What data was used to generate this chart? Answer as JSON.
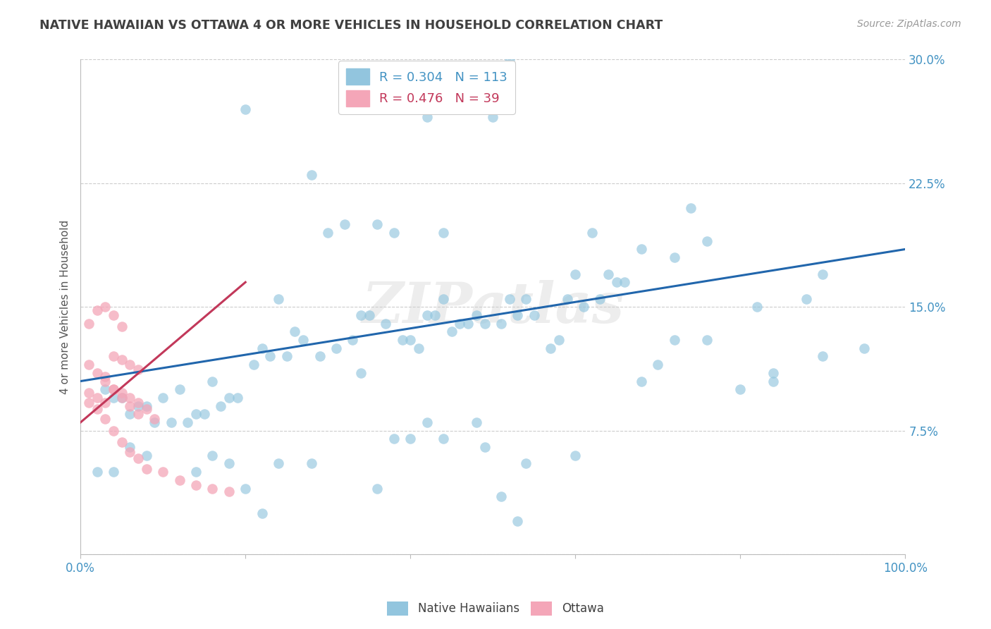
{
  "title": "NATIVE HAWAIIAN VS OTTAWA 4 OR MORE VEHICLES IN HOUSEHOLD CORRELATION CHART",
  "source": "Source: ZipAtlas.com",
  "ylabel": "4 or more Vehicles in Household",
  "watermark": "ZIPatlas",
  "xlim": [
    0.0,
    1.0
  ],
  "ylim": [
    0.0,
    0.3
  ],
  "ytick_positions": [
    0.0,
    0.075,
    0.15,
    0.225,
    0.3
  ],
  "yticklabels": [
    "",
    "7.5%",
    "15.0%",
    "22.5%",
    "30.0%"
  ],
  "color_blue": "#92c5de",
  "color_pink": "#f4a6b8",
  "color_line_blue": "#2166ac",
  "color_line_pink": "#c2385a",
  "color_ticks_blue": "#4393c3",
  "color_title": "#404040",
  "color_source": "#999999",
  "native_hawaiian_x": [
    0.42,
    0.52,
    0.2,
    0.5,
    0.28,
    0.36,
    0.44,
    0.3,
    0.32,
    0.38,
    0.04,
    0.06,
    0.08,
    0.1,
    0.12,
    0.14,
    0.16,
    0.18,
    0.22,
    0.24,
    0.26,
    0.34,
    0.4,
    0.46,
    0.48,
    0.54,
    0.58,
    0.6,
    0.62,
    0.64,
    0.66,
    0.68,
    0.72,
    0.74,
    0.76,
    0.8,
    0.82,
    0.84,
    0.88,
    0.9,
    0.95,
    0.03,
    0.05,
    0.07,
    0.09,
    0.11,
    0.13,
    0.15,
    0.17,
    0.19,
    0.21,
    0.23,
    0.25,
    0.27,
    0.29,
    0.31,
    0.33,
    0.35,
    0.37,
    0.39,
    0.41,
    0.43,
    0.45,
    0.47,
    0.49,
    0.51,
    0.53,
    0.55,
    0.57,
    0.59,
    0.61,
    0.63,
    0.65,
    0.02,
    0.04,
    0.06,
    0.08,
    0.49,
    0.51,
    0.53,
    0.38,
    0.4,
    0.42,
    0.44,
    0.48,
    0.16,
    0.18,
    0.2,
    0.22,
    0.72,
    0.68,
    0.76,
    0.84,
    0.9,
    0.36,
    0.24,
    0.14,
    0.42,
    0.34,
    0.52,
    0.28,
    0.54,
    0.6,
    0.7,
    0.44
  ],
  "native_hawaiian_y": [
    0.265,
    0.3,
    0.27,
    0.265,
    0.23,
    0.2,
    0.195,
    0.195,
    0.2,
    0.195,
    0.095,
    0.085,
    0.09,
    0.095,
    0.1,
    0.085,
    0.105,
    0.095,
    0.125,
    0.155,
    0.135,
    0.145,
    0.13,
    0.14,
    0.145,
    0.155,
    0.13,
    0.17,
    0.195,
    0.17,
    0.165,
    0.185,
    0.18,
    0.21,
    0.13,
    0.1,
    0.15,
    0.11,
    0.155,
    0.17,
    0.125,
    0.1,
    0.095,
    0.09,
    0.08,
    0.08,
    0.08,
    0.085,
    0.09,
    0.095,
    0.115,
    0.12,
    0.12,
    0.13,
    0.12,
    0.125,
    0.13,
    0.145,
    0.14,
    0.13,
    0.125,
    0.145,
    0.135,
    0.14,
    0.14,
    0.14,
    0.145,
    0.145,
    0.125,
    0.155,
    0.15,
    0.155,
    0.165,
    0.05,
    0.05,
    0.065,
    0.06,
    0.065,
    0.035,
    0.02,
    0.07,
    0.07,
    0.08,
    0.07,
    0.08,
    0.06,
    0.055,
    0.04,
    0.025,
    0.13,
    0.105,
    0.19,
    0.105,
    0.12,
    0.04,
    0.055,
    0.05,
    0.145,
    0.11,
    0.155,
    0.055,
    0.055,
    0.06,
    0.115,
    0.155
  ],
  "ottawa_x": [
    0.01,
    0.02,
    0.03,
    0.04,
    0.05,
    0.06,
    0.07,
    0.08,
    0.01,
    0.02,
    0.03,
    0.04,
    0.05,
    0.06,
    0.07,
    0.01,
    0.02,
    0.03,
    0.04,
    0.05,
    0.01,
    0.02,
    0.03,
    0.03,
    0.04,
    0.05,
    0.06,
    0.07,
    0.08,
    0.09,
    0.04,
    0.05,
    0.06,
    0.07,
    0.1,
    0.12,
    0.14,
    0.16,
    0.18
  ],
  "ottawa_y": [
    0.092,
    0.088,
    0.082,
    0.075,
    0.068,
    0.062,
    0.058,
    0.052,
    0.115,
    0.11,
    0.108,
    0.1,
    0.095,
    0.09,
    0.085,
    0.14,
    0.148,
    0.15,
    0.145,
    0.138,
    0.098,
    0.095,
    0.092,
    0.105,
    0.1,
    0.098,
    0.095,
    0.092,
    0.088,
    0.082,
    0.12,
    0.118,
    0.115,
    0.112,
    0.05,
    0.045,
    0.042,
    0.04,
    0.038
  ],
  "blue_line_x": [
    0.0,
    1.0
  ],
  "blue_line_y": [
    0.105,
    0.185
  ],
  "pink_line_x": [
    0.0,
    0.2
  ],
  "pink_line_y": [
    0.08,
    0.165
  ],
  "background_color": "#ffffff",
  "grid_color": "#cccccc"
}
